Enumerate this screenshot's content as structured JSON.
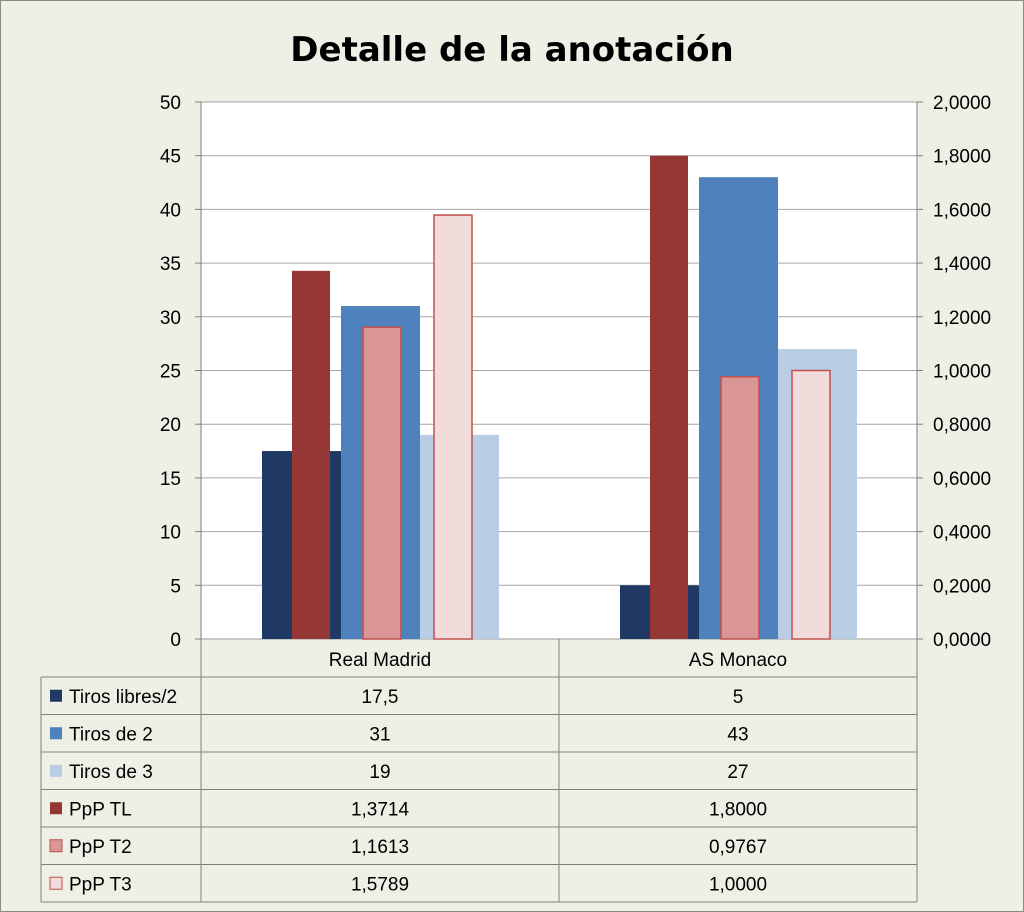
{
  "chart_data": {
    "type": "bar",
    "title": "Detalle de la anotación",
    "categories": [
      "Real Madrid",
      "AS Monaco"
    ],
    "y_left": {
      "range": [
        0,
        50
      ],
      "ticks": [
        "0",
        "5",
        "10",
        "15",
        "20",
        "25",
        "30",
        "35",
        "40",
        "45",
        "50"
      ]
    },
    "y_right": {
      "range": [
        0,
        2
      ],
      "ticks": [
        "0,0000",
        "0,2000",
        "0,4000",
        "0,6000",
        "0,8000",
        "1,0000",
        "1,2000",
        "1,4000",
        "1,6000",
        "1,8000",
        "2,0000"
      ]
    },
    "grid": true,
    "legend": "data-table",
    "series": [
      {
        "name": "Tiros libres/2",
        "axis": "left",
        "color": "#1f3864",
        "values": [
          17.5,
          5
        ],
        "labels": [
          "17,5",
          "5"
        ]
      },
      {
        "name": "Tiros de 2",
        "axis": "left",
        "color": "#4f81bd",
        "values": [
          31,
          43
        ],
        "labels": [
          "31",
          "43"
        ]
      },
      {
        "name": "Tiros de 3",
        "axis": "left",
        "color": "#b9cde5",
        "values": [
          19,
          27
        ],
        "labels": [
          "19",
          "27"
        ]
      },
      {
        "name": "PpP TL",
        "axis": "right",
        "color": "#953735",
        "values": [
          1.3714,
          1.8
        ],
        "labels": [
          "1,3714",
          "1,8000"
        ]
      },
      {
        "name": "PpP T2",
        "axis": "right",
        "color": "#d99694",
        "values": [
          1.1613,
          0.9767
        ],
        "labels": [
          "1,1613",
          "0,9767"
        ]
      },
      {
        "name": "PpP T3",
        "axis": "right",
        "color": "#f2dcdb",
        "values": [
          1.5789,
          1.0
        ],
        "labels": [
          "1,5789",
          "1,0000"
        ]
      }
    ]
  }
}
